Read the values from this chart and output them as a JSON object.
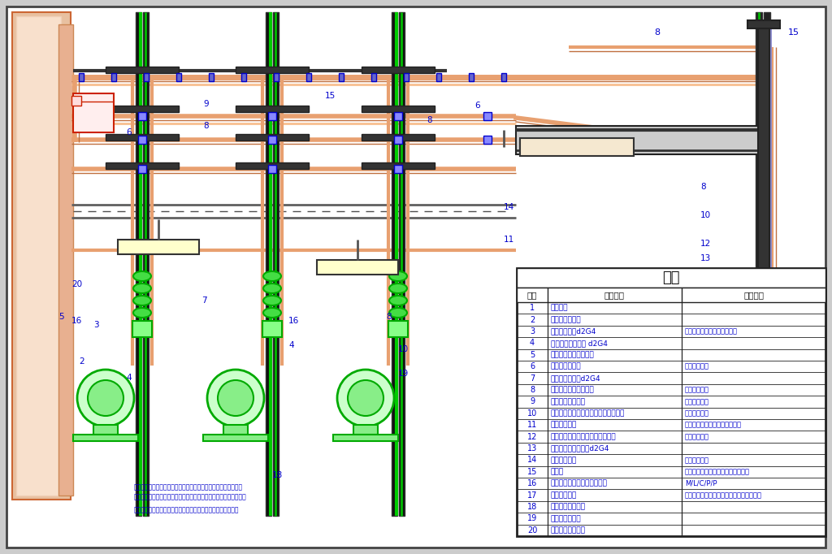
{
  "bg_color": "#ffffff",
  "legend_title": "凡例",
  "legend_header": [
    "記号",
    "名　　称",
    "備　　考"
  ],
  "legend_rows": [
    [
      "1",
      "ケーブル",
      ""
    ],
    [
      "2",
      "ケーブルダクト",
      ""
    ],
    [
      "3",
      "接続端子箱　d2G4",
      "ケーブル工事から電線管工事"
    ],
    [
      "4",
      "ケーブルグランド d2G4",
      ""
    ],
    [
      "5",
      "ケーブル保護チューブ",
      ""
    ],
    [
      "6",
      "クランプサドル",
      "耐圧防爆構造"
    ],
    [
      "7",
      "照明器具　　　d2G4",
      ""
    ],
    [
      "8",
      "ユニオンカップリング",
      "耐圧防爆構造"
    ],
    [
      "9",
      "ブランクキャップ",
      "耐圧防爆構造"
    ],
    [
      "10",
      "シーリングフィッティング　ドレン形",
      "耐圧防爆構造"
    ],
    [
      "11",
      "カップリング",
      "片方に締付用ロックナット取付"
    ],
    [
      "12",
      "ニップル　両側ロックナット取付",
      "耐圧防爆構造"
    ],
    [
      "13",
      "タンブラスイッチ　d2G4",
      ""
    ],
    [
      "14",
      "レジューサー",
      "耐圧防爆構造"
    ],
    [
      "15",
      "支持材",
      "支持材リップ鋼・山形鋼現場制作品"
    ],
    [
      "16",
      "防爆形コントロールスイッチ",
      "M/L/C/P/P"
    ],
    [
      "17",
      "スタンション",
      "スタンション溶接制作品（市販品もあり）"
    ],
    [
      "18",
      "耐圧防爆形電動機",
      ""
    ],
    [
      "19",
      "防爆コンセント",
      ""
    ],
    [
      "20",
      "リミットスイッチ",
      ""
    ]
  ],
  "note_line1": "配管接続部はネジ切部は防錆処理及び耐硬化性材で防湿すること",
  "note_line2": "機器などの接合面は耐硬化性の液状ガスケット等でシールすること",
  "note_line3": "施工はコンビナート工場防爆指針、消防他関連法規確認のこと",
  "label_color": "#0000cc",
  "pipe_color": "#e8a070",
  "pipe_color_light": "#f0b888",
  "green_color": "#00bb00",
  "red_color": "#cc2200",
  "black_color": "#111111",
  "blue_color": "#0000cc",
  "gray_color": "#888888",
  "wall_color": "#e8c0a0",
  "wall_edge": "#cc6633",
  "purple_color": "#8888cc"
}
